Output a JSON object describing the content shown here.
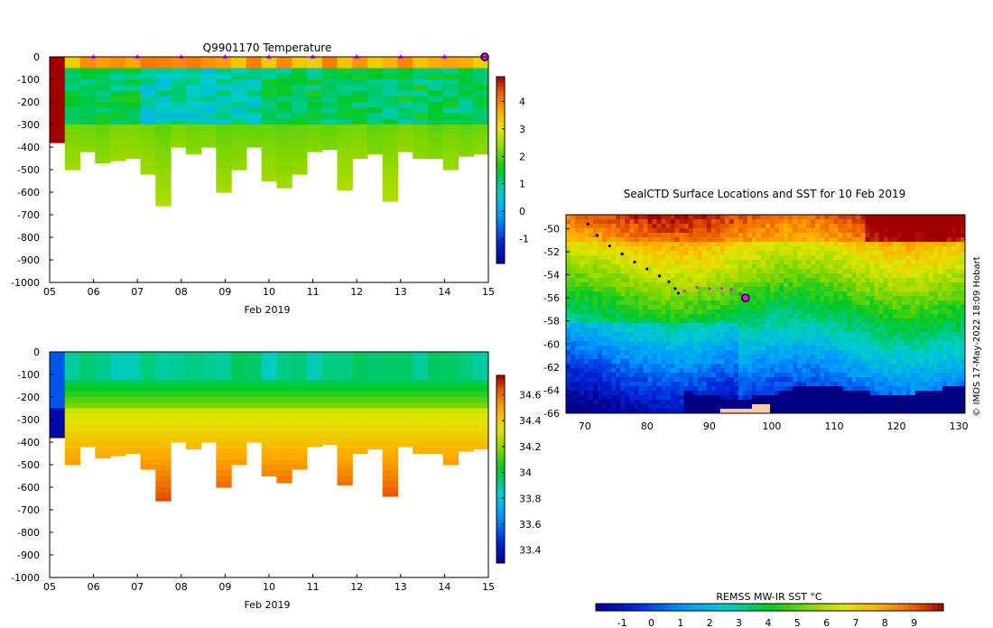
{
  "chart_data": [
    {
      "id": "temperature",
      "type": "heatmap",
      "title": "Q9901170  Temperature",
      "xlabel": "Feb 2019",
      "ylabel": "",
      "xlim": [
        5,
        15
      ],
      "ylim": [
        -1000,
        0
      ],
      "x_ticks": [
        "05",
        "06",
        "07",
        "08",
        "09",
        "10",
        "11",
        "12",
        "13",
        "14",
        "15"
      ],
      "y_ticks": [
        "0",
        "-100",
        "-200",
        "-300",
        "-400",
        "-500",
        "-600",
        "-700",
        "-800",
        "-900",
        "-1000"
      ],
      "colorbar": {
        "min": -1.9,
        "max": 4.9,
        "ticks": [
          "-1",
          "0",
          "1",
          "2",
          "3",
          "4"
        ],
        "tick_values": [
          -1,
          0,
          1,
          2,
          3,
          4
        ]
      },
      "profile_markers_day": [
        6,
        7,
        8,
        9,
        10,
        11,
        12,
        13,
        14
      ],
      "last_marker_day": 15,
      "profile_max_depths": [
        -380,
        -500,
        -420,
        -470,
        -460,
        -450,
        -520,
        -660,
        -400,
        -430,
        -400,
        -600,
        -500,
        -400,
        -550,
        -580,
        -520,
        -420,
        -410,
        -590,
        -450,
        -430,
        -640,
        -420,
        -450,
        -450,
        -500,
        -440,
        -430
      ]
    },
    {
      "id": "salinity",
      "type": "heatmap",
      "title": "",
      "xlabel": "Feb 2019",
      "ylabel": "",
      "xlim": [
        5,
        15
      ],
      "ylim": [
        -1000,
        0
      ],
      "x_ticks": [
        "05",
        "06",
        "07",
        "08",
        "09",
        "10",
        "11",
        "12",
        "13",
        "14",
        "15"
      ],
      "y_ticks": [
        "0",
        "-100",
        "-200",
        "-300",
        "-400",
        "-500",
        "-600",
        "-700",
        "-800",
        "-900",
        "-1000"
      ],
      "colorbar": {
        "min": 33.3,
        "max": 34.75,
        "ticks": [
          "33.4",
          "33.6",
          "33.8",
          "34",
          "34.2",
          "34.4",
          "34.6"
        ],
        "tick_values": [
          33.4,
          33.6,
          33.8,
          34.0,
          34.2,
          34.4,
          34.6
        ]
      }
    },
    {
      "id": "sst_map",
      "type": "heatmap",
      "title": "SealCTD Surface Locations and SST for 10 Feb 2019",
      "xlabel": "",
      "ylabel": "",
      "xlim": [
        67,
        131
      ],
      "ylim": [
        -66,
        -48.8
      ],
      "x_ticks": [
        "70",
        "80",
        "90",
        "100",
        "110",
        "120",
        "130"
      ],
      "x_tick_values": [
        70,
        80,
        90,
        100,
        110,
        120,
        130
      ],
      "y_ticks": [
        "-50",
        "-52",
        "-54",
        "-56",
        "-58",
        "-60",
        "-62",
        "-64",
        "-66"
      ],
      "y_tick_values": [
        -50,
        -52,
        -54,
        -56,
        -58,
        -60,
        -62,
        -64,
        -66
      ],
      "colorbar_label": "REMSS MW-IR SST °C",
      "colorbar": {
        "min": -1.9,
        "max": 10,
        "ticks": [
          "-1",
          "0",
          "1",
          "2",
          "3",
          "4",
          "5",
          "6",
          "7",
          "8",
          "9"
        ],
        "tick_values": [
          -1,
          0,
          1,
          2,
          3,
          4,
          5,
          6,
          7,
          8,
          9
        ]
      },
      "track_lon": [
        70.5,
        72,
        74,
        76,
        78,
        80,
        82,
        83.5,
        84.5,
        85,
        86,
        88,
        90,
        92,
        93.5,
        95,
        95.8
      ],
      "track_lat": [
        -49.6,
        -50.6,
        -51.5,
        -52.2,
        -52.9,
        -53.5,
        -54.1,
        -54.6,
        -55.2,
        -55.6,
        -55.4,
        -55.1,
        -55.2,
        -55.2,
        -55.3,
        -55.7,
        -56.0
      ],
      "last_position": {
        "lon": 95.8,
        "lat": -56.0
      },
      "credit": "© IMOS 17-May-2022 18:09 Hobart"
    }
  ]
}
